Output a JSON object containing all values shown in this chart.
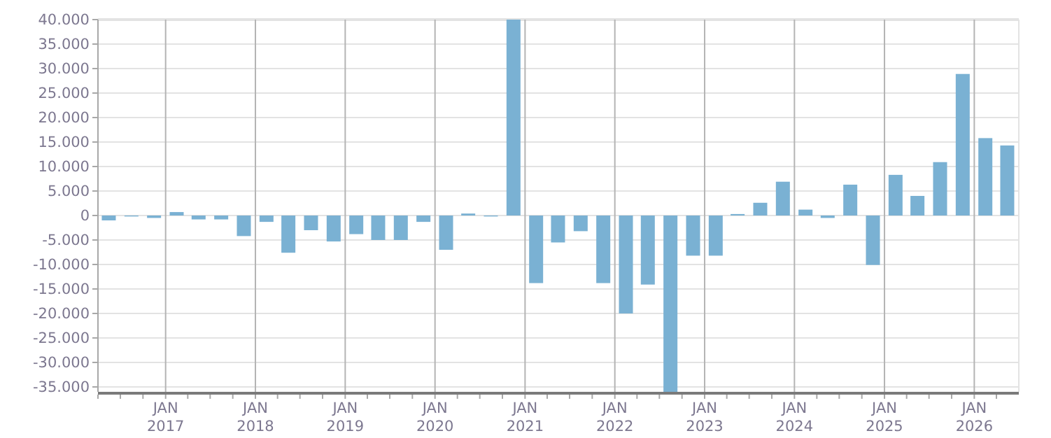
{
  "chart_data": {
    "type": "bar",
    "color": "#7ab1d3",
    "grid": true,
    "x": [
      "2016-05-15",
      "2016-08-15",
      "2016-11-15",
      "2017-02-15",
      "2017-05-15",
      "2017-08-15",
      "2017-11-15",
      "2018-02-15",
      "2018-05-15",
      "2018-08-15",
      "2018-11-15",
      "2019-02-15",
      "2019-05-15",
      "2019-08-15",
      "2019-11-15",
      "2020-02-15",
      "2020-05-15",
      "2020-08-15",
      "2020-11-15",
      "2021-02-15",
      "2021-05-15",
      "2021-08-15",
      "2021-11-15",
      "2022-02-15",
      "2022-05-15",
      "2022-08-15",
      "2022-11-15",
      "2023-02-15",
      "2023-05-15",
      "2023-08-15",
      "2023-11-15",
      "2024-02-15",
      "2024-05-15",
      "2024-08-15",
      "2024-11-15",
      "2025-02-15",
      "2025-05-15",
      "2025-08-15",
      "2025-11-15",
      "2026-02-15",
      "2026-05-15"
    ],
    "values": [
      -1000,
      -200,
      -500,
      700,
      -800,
      -800,
      -4200,
      -1300,
      -7600,
      -3000,
      -5300,
      -3800,
      -5000,
      -5000,
      -1300,
      -7000,
      400,
      -200,
      40000,
      -13800,
      -5500,
      -3200,
      -13800,
      -20000,
      -14100,
      -36000,
      -8200,
      -8200,
      300,
      2600,
      6900,
      1200,
      -500,
      6300,
      -10100,
      8300,
      4000,
      10900,
      28900,
      15800,
      14300
    ],
    "xlim": [
      "2016-04-01",
      "2026-07-01"
    ],
    "xticks": [
      {
        "value": "2016-04-01",
        "label": null
      },
      {
        "value": "2016-07-01",
        "label": null
      },
      {
        "value": "2016-10-01",
        "label": null
      },
      {
        "value": "2017-01-01",
        "label": "JAN\n2017"
      },
      {
        "value": "2017-04-01",
        "label": null
      },
      {
        "value": "2017-07-01",
        "label": null
      },
      {
        "value": "2017-10-01",
        "label": null
      },
      {
        "value": "2018-01-01",
        "label": "JAN\n2018"
      },
      {
        "value": "2018-04-01",
        "label": null
      },
      {
        "value": "2018-07-01",
        "label": null
      },
      {
        "value": "2018-10-01",
        "label": null
      },
      {
        "value": "2019-01-01",
        "label": "JAN\n2019"
      },
      {
        "value": "2019-04-01",
        "label": null
      },
      {
        "value": "2019-07-01",
        "label": null
      },
      {
        "value": "2019-10-01",
        "label": null
      },
      {
        "value": "2020-01-01",
        "label": "JAN\n2020"
      },
      {
        "value": "2020-04-01",
        "label": null
      },
      {
        "value": "2020-07-01",
        "label": null
      },
      {
        "value": "2020-10-01",
        "label": null
      },
      {
        "value": "2021-01-01",
        "label": "JAN\n2021"
      },
      {
        "value": "2021-04-01",
        "label": null
      },
      {
        "value": "2021-07-01",
        "label": null
      },
      {
        "value": "2021-10-01",
        "label": null
      },
      {
        "value": "2022-01-01",
        "label": "JAN\n2022"
      },
      {
        "value": "2022-04-01",
        "label": null
      },
      {
        "value": "2022-07-01",
        "label": null
      },
      {
        "value": "2022-10-01",
        "label": null
      },
      {
        "value": "2023-01-01",
        "label": "JAN\n2023"
      },
      {
        "value": "2023-04-01",
        "label": null
      },
      {
        "value": "2023-07-01",
        "label": null
      },
      {
        "value": "2023-10-01",
        "label": null
      },
      {
        "value": "2024-01-01",
        "label": "JAN\n2024"
      },
      {
        "value": "2024-04-01",
        "label": null
      },
      {
        "value": "2024-07-01",
        "label": null
      },
      {
        "value": "2024-10-01",
        "label": null
      },
      {
        "value": "2025-01-01",
        "label": "JAN\n2025"
      },
      {
        "value": "2025-04-01",
        "label": null
      },
      {
        "value": "2025-07-01",
        "label": null
      },
      {
        "value": "2025-10-01",
        "label": null
      },
      {
        "value": "2026-01-01",
        "label": "JAN\n2026"
      },
      {
        "value": "2026-04-01",
        "label": null
      }
    ],
    "ylim": [
      -36000,
      40000
    ],
    "yticks": [
      {
        "value": -35000,
        "label": "-35.000"
      },
      {
        "value": -30000,
        "label": "-30.000"
      },
      {
        "value": -25000,
        "label": "-25.000"
      },
      {
        "value": -20000,
        "label": "-20.000"
      },
      {
        "value": -15000,
        "label": "-15.000"
      },
      {
        "value": -10000,
        "label": "-10.000"
      },
      {
        "value": -5000,
        "label": "-5.000"
      },
      0,
      {
        "value": 5000,
        "label": "5.000"
      },
      {
        "value": 10000,
        "label": "10.000"
      },
      {
        "value": 15000,
        "label": "15.000"
      },
      {
        "value": 20000,
        "label": "20.000"
      },
      {
        "value": 25000,
        "label": "25.000"
      },
      {
        "value": 30000,
        "label": "30.000"
      },
      {
        "value": 35000,
        "label": "35.000"
      },
      {
        "value": 40000,
        "label": "40.000"
      }
    ]
  }
}
